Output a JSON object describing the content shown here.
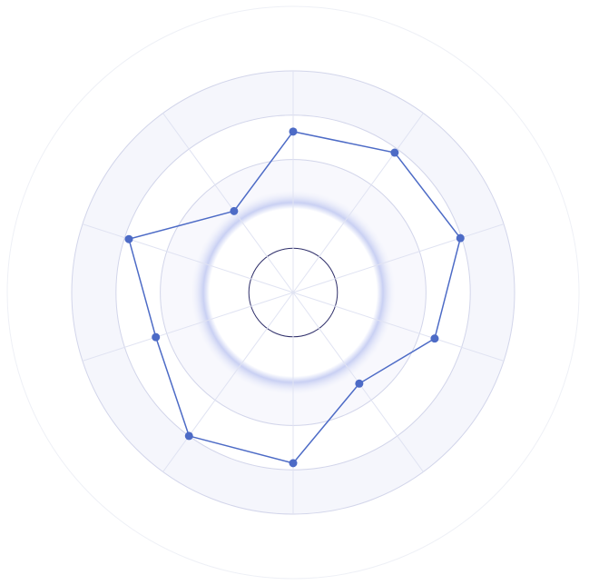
{
  "chart_data": {
    "type": "radar",
    "categories": [
      null,
      null,
      null,
      null,
      null,
      null,
      null,
      null,
      null,
      null
    ],
    "series": [
      {
        "color": "#4d6bc6",
        "values": [
          3.63,
          3.9,
          3.97,
          3.36,
          2.54,
          3.85,
          4.0,
          3.26,
          3.9,
          2.27
        ]
      }
    ],
    "rlim": [
      0,
      5
    ],
    "rticks": [
      1,
      2,
      3,
      4,
      5
    ],
    "grid": true
  }
}
